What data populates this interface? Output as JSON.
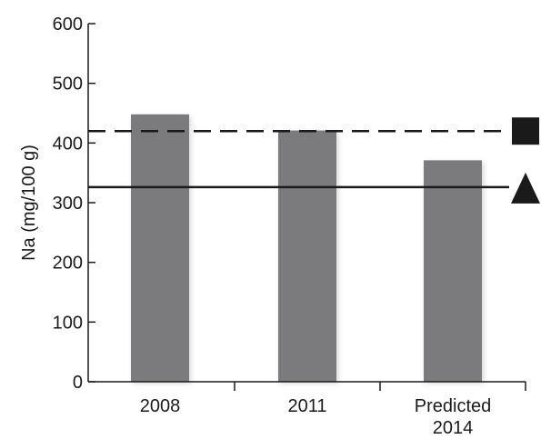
{
  "chart_data": {
    "type": "bar",
    "categories": [
      "2008",
      "2011",
      "Predicted 2014"
    ],
    "category_label_lines": [
      [
        "2008"
      ],
      [
        "2011"
      ],
      [
        "Predicted",
        "2014"
      ]
    ],
    "values": [
      448,
      421,
      371
    ],
    "ylabel": "Na (mg/100 g)",
    "xlabel": "",
    "ylim": [
      0,
      600
    ],
    "yticks": [
      0,
      100,
      200,
      300,
      400,
      500,
      600
    ],
    "grid": false,
    "reference_lines": [
      {
        "value": 420,
        "style": "dashed",
        "marker": "square"
      },
      {
        "value": 326,
        "style": "solid",
        "marker": "triangle"
      }
    ],
    "colors": {
      "bar": "#7b7b7d",
      "line": "#1a1a1a",
      "background": "#ffffff"
    }
  }
}
